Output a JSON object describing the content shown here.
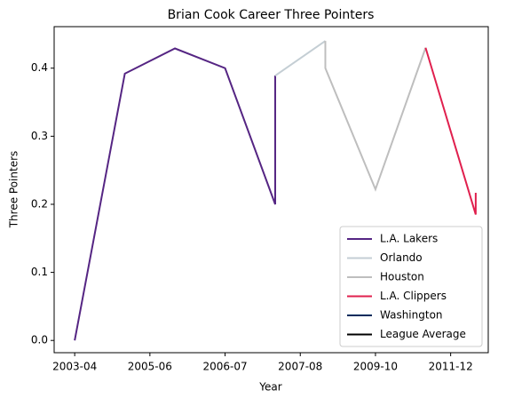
{
  "chart_data": {
    "type": "line",
    "title": "Brian Cook Career Three Pointers",
    "xlabel": "Year",
    "ylabel": "Three Pointers",
    "series": [
      {
        "name": "L.A. Lakers",
        "color": "#552583",
        "x": [
          0,
          1,
          2,
          3,
          4,
          4
        ],
        "values": [
          0.0,
          0.392,
          0.429,
          0.4,
          0.2,
          0.389
        ]
      },
      {
        "name": "Orlando",
        "color": "#c4ced4",
        "x": [
          4,
          5
        ],
        "values": [
          0.389,
          0.44
        ]
      },
      {
        "name": "Houston",
        "color": "#bebebe",
        "x": [
          5,
          5,
          6,
          7
        ],
        "values": [
          0.44,
          0.4,
          0.222,
          0.43
        ]
      },
      {
        "name": "L.A. Clippers",
        "color": "#e0204e",
        "x": [
          7,
          8,
          8
        ],
        "values": [
          0.43,
          0.185,
          0.217
        ]
      },
      {
        "name": "Washington",
        "color": "#002b5c",
        "x": [],
        "values": []
      },
      {
        "name": "League Average",
        "color": "#000000",
        "x": [],
        "values": []
      }
    ],
    "xlim": [
      -0.41,
      8.25
    ],
    "xticks": [
      {
        "value": 0,
        "label": "2003-04"
      },
      {
        "value": 1.5,
        "label": "2005-06"
      },
      {
        "value": 3,
        "label": "2006-07"
      },
      {
        "value": 4.5,
        "label": "2007-08"
      },
      {
        "value": 6,
        "label": "2009-10"
      },
      {
        "value": 7.5,
        "label": "2011-12"
      }
    ],
    "ylim": [
      -0.018,
      0.461
    ],
    "yticks": [
      {
        "value": 0,
        "label": "0.0"
      },
      {
        "value": 0.1,
        "label": "0.1"
      },
      {
        "value": 0.2,
        "label": "0.2"
      },
      {
        "value": 0.3,
        "label": "0.3"
      },
      {
        "value": 0.4,
        "label": "0.4"
      }
    ],
    "legend": "lower right"
  }
}
